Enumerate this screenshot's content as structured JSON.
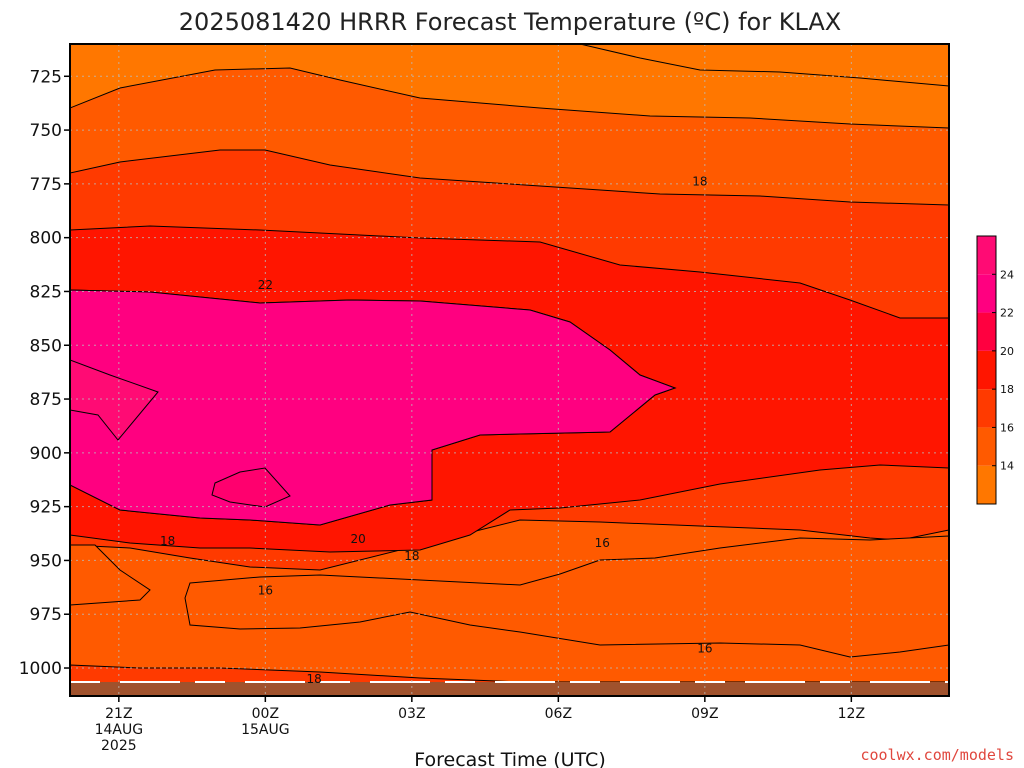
{
  "chart_data": {
    "type": "contour",
    "title": "2025081420 HRRR Forecast Temperature (ºC) for KLAX",
    "xlabel": "Forecast Time (UTC)",
    "ylabel": "",
    "y_scale": "pressure (hPa), inverted",
    "ylim": [
      1013,
      710
    ],
    "yticks": [
      "725",
      "750",
      "775",
      "800",
      "825",
      "850",
      "875",
      "900",
      "925",
      "950",
      "975",
      "1000"
    ],
    "ytick_values": [
      725,
      750,
      775,
      800,
      825,
      850,
      875,
      900,
      925,
      950,
      975,
      1000
    ],
    "xlim": [
      20,
      38
    ],
    "xtick_values": [
      21,
      24,
      27,
      30,
      33,
      36
    ],
    "xticks": [
      {
        "line1": "21Z",
        "line2": "14AUG",
        "line3": "2025"
      },
      {
        "line1": "00Z",
        "line2": "15AUG",
        "line3": ""
      },
      {
        "line1": "03Z",
        "line2": "",
        "line3": ""
      },
      {
        "line1": "06Z",
        "line2": "",
        "line3": ""
      },
      {
        "line1": "09Z",
        "line2": "",
        "line3": ""
      },
      {
        "line1": "12Z",
        "line2": "",
        "line3": ""
      }
    ],
    "contour_interval": 2,
    "contour_labels": [
      {
        "text": "18",
        "t": 32.9,
        "p": 774
      },
      {
        "text": "22",
        "t": 24.0,
        "p": 822
      },
      {
        "text": "18",
        "t": 22.0,
        "p": 941
      },
      {
        "text": "20",
        "t": 25.9,
        "p": 940
      },
      {
        "text": "18",
        "t": 27.0,
        "p": 948
      },
      {
        "text": "16",
        "t": 24.0,
        "p": 964
      },
      {
        "text": "16",
        "t": 30.9,
        "p": 942
      },
      {
        "text": "16",
        "t": 33.0,
        "p": 991
      },
      {
        "text": "18",
        "t": 25.0,
        "p": 1005
      }
    ],
    "grid": true,
    "colorbar": {
      "ticks": [
        "14",
        "16",
        "18",
        "20",
        "22",
        "24"
      ],
      "tick_values": [
        14,
        16,
        18,
        20,
        22,
        24
      ],
      "range": [
        12,
        26
      ],
      "band_colors": [
        "#ff7700",
        "#ff5a00",
        "#ff3a00",
        "#ff1500",
        "#ff0040",
        "#ff0080",
        "#ff0b74"
      ]
    },
    "colors": {
      "band_12_14": "#ff7700",
      "band_14_16": "#ff5a00",
      "band_16_18": "#ff3a00",
      "band_18_20": "#ff1500",
      "band_20_22": "#ff0040",
      "band_22_24": "#ff0080",
      "band_24_26": "#ff0b74",
      "terrain": "#a0522d"
    }
  },
  "credit": "coolwx.com/models",
  "credit_color": "#e0473e"
}
